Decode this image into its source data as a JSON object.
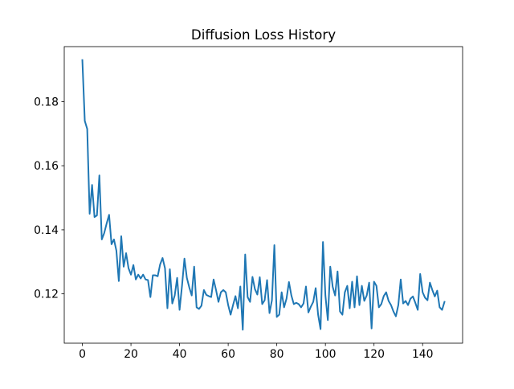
{
  "chart_data": {
    "type": "line",
    "title": "Diffusion Loss History",
    "x": [
      0,
      1,
      2,
      3,
      4,
      5,
      6,
      7,
      8,
      9,
      10,
      11,
      12,
      13,
      14,
      15,
      16,
      17,
      18,
      19,
      20,
      21,
      22,
      23,
      24,
      25,
      26,
      27,
      28,
      29,
      30,
      31,
      32,
      33,
      34,
      35,
      36,
      37,
      38,
      39,
      40,
      41,
      42,
      43,
      44,
      45,
      46,
      47,
      48,
      49,
      50,
      51,
      52,
      53,
      54,
      55,
      56,
      57,
      58,
      59,
      60,
      61,
      62,
      63,
      64,
      65,
      66,
      67,
      68,
      69,
      70,
      71,
      72,
      73,
      74,
      75,
      76,
      77,
      78,
      79,
      80,
      81,
      82,
      83,
      84,
      85,
      86,
      87,
      88,
      89,
      90,
      91,
      92,
      93,
      94,
      95,
      96,
      97,
      98,
      99,
      100,
      101,
      102,
      103,
      104,
      105,
      106,
      107,
      108,
      109,
      110,
      111,
      112,
      113,
      114,
      115,
      116,
      117,
      118,
      119,
      120,
      121,
      122,
      123,
      124,
      125,
      126,
      127,
      128,
      129,
      130,
      131,
      132,
      133,
      134,
      135,
      136,
      137,
      138,
      139,
      140,
      141,
      142,
      143,
      144,
      145,
      146,
      147,
      148,
      149
    ],
    "values": [
      0.193,
      0.174,
      0.1715,
      0.145,
      0.154,
      0.144,
      0.1445,
      0.157,
      0.137,
      0.139,
      0.142,
      0.1447,
      0.1355,
      0.137,
      0.1335,
      0.124,
      0.138,
      0.1285,
      0.1327,
      0.128,
      0.126,
      0.129,
      0.1245,
      0.126,
      0.1248,
      0.126,
      0.1245,
      0.1243,
      0.119,
      0.1258,
      0.1258,
      0.1255,
      0.1292,
      0.1312,
      0.128,
      0.1155,
      0.1277,
      0.117,
      0.1195,
      0.125,
      0.115,
      0.1225,
      0.131,
      0.125,
      0.122,
      0.1195,
      0.1285,
      0.1158,
      0.1153,
      0.1163,
      0.1212,
      0.1197,
      0.1193,
      0.119,
      0.1245,
      0.1212,
      0.1175,
      0.1205,
      0.1212,
      0.1205,
      0.1165,
      0.1135,
      0.1165,
      0.1193,
      0.1155,
      0.1223,
      0.1088,
      0.1323,
      0.119,
      0.1175,
      0.1253,
      0.1215,
      0.1198,
      0.1252,
      0.1168,
      0.118,
      0.1243,
      0.114,
      0.118,
      0.1352,
      0.1128,
      0.1135,
      0.1205,
      0.1158,
      0.1185,
      0.1237,
      0.1195,
      0.1168,
      0.1172,
      0.1168,
      0.1158,
      0.117,
      0.1223,
      0.1142,
      0.116,
      0.1175,
      0.1218,
      0.1135,
      0.109,
      0.1362,
      0.1195,
      0.1118,
      0.1285,
      0.1222,
      0.1195,
      0.127,
      0.1145,
      0.1135,
      0.1205,
      0.1225,
      0.1155,
      0.1238,
      0.1158,
      0.1255,
      0.1165,
      0.1225,
      0.1178,
      0.1195,
      0.1235,
      0.1092,
      0.1238,
      0.1225,
      0.1158,
      0.1168,
      0.1193,
      0.1205,
      0.1178,
      0.1165,
      0.1145,
      0.113,
      0.1165,
      0.1245,
      0.117,
      0.1178,
      0.1165,
      0.1185,
      0.1192,
      0.1172,
      0.115,
      0.1262,
      0.1205,
      0.1188,
      0.118,
      0.1235,
      0.1212,
      0.1192,
      0.121,
      0.1158,
      0.115,
      0.1175
    ],
    "color": "#1f77b4",
    "xlim": [
      -7.45,
      156.45
    ],
    "xticks": [
      0,
      20,
      40,
      60,
      80,
      100,
      120,
      140
    ],
    "ylim": [
      0.1046,
      0.1972
    ],
    "yticks": [
      0.12,
      0.14,
      0.16,
      0.18
    ]
  }
}
